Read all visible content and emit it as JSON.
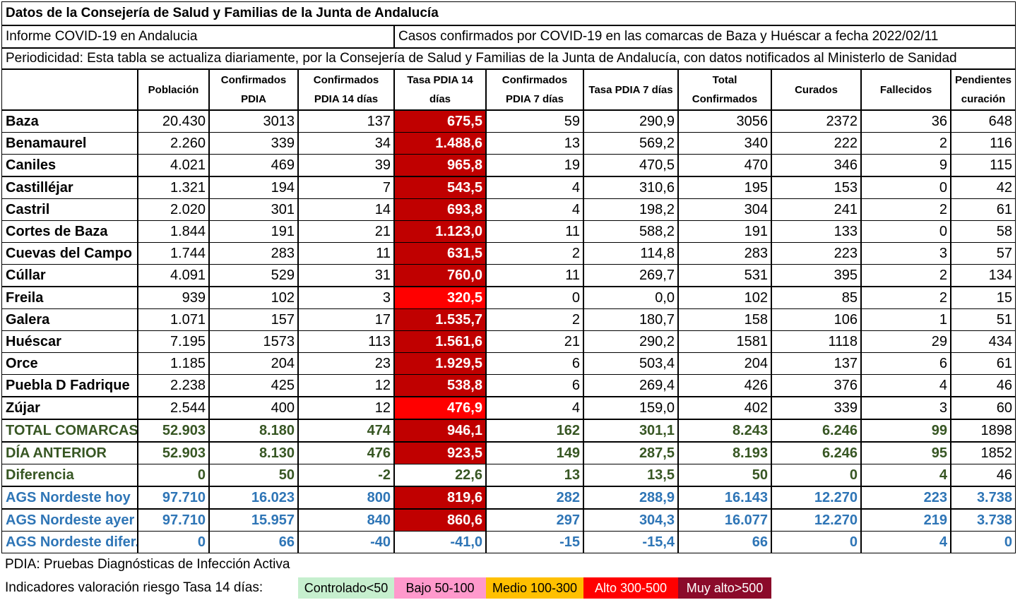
{
  "header": {
    "title": "Datos de la Consejería de Salud y Familias de la Junta de Andalucía",
    "report": "Informe COVID-19 en Andalucia",
    "subject": "Casos confirmados por COVID-19 en las comarcas de Baza y Huéscar a fecha 2022/02/11",
    "periodicity": "Periodicidad: Esta tabla se actualiza diariamente, por la Consejería de Salud y Familias de la Junta de Andalucía, con datos notificados al Ministerlo de Sanidad"
  },
  "columns": {
    "poblacion": "Población",
    "confirmados_pdia": "Confirmados PDIA",
    "confirmados_14": "Confirmados PDIA 14 días",
    "tasa_14": "Tasa PDIA 14 días",
    "confirmados_7": "Confirmados PDIA 7 días",
    "tasa_7": "Tasa PDIA 7 días",
    "total": "Total Confirmados",
    "curados": "Curados",
    "fallecidos": "Fallecidos",
    "pendientes": "Pendientes curación"
  },
  "rows": [
    {
      "name": "Baza",
      "poblacion": "20.430",
      "pdia": "3013",
      "c14": "137",
      "tasa14": "675,5",
      "level": "muyalto",
      "c7": "59",
      "tasa7": "290,9",
      "total": "3056",
      "curados": "2372",
      "fallecidos": "36",
      "pendientes": "648"
    },
    {
      "name": "Benamaurel",
      "poblacion": "2.260",
      "pdia": "339",
      "c14": "34",
      "tasa14": "1.488,6",
      "level": "muyalto",
      "c7": "13",
      "tasa7": "569,2",
      "total": "340",
      "curados": "222",
      "fallecidos": "2",
      "pendientes": "116"
    },
    {
      "name": "Caniles",
      "poblacion": "4.021",
      "pdia": "469",
      "c14": "39",
      "tasa14": "965,8",
      "level": "muyalto",
      "c7": "19",
      "tasa7": "470,5",
      "total": "470",
      "curados": "346",
      "fallecidos": "9",
      "pendientes": "115"
    },
    {
      "name": "Castilléjar",
      "poblacion": "1.321",
      "pdia": "194",
      "c14": "7",
      "tasa14": "543,5",
      "level": "muyalto",
      "c7": "4",
      "tasa7": "310,6",
      "total": "195",
      "curados": "153",
      "fallecidos": "0",
      "pendientes": "42"
    },
    {
      "name": "Castril",
      "poblacion": "2.020",
      "pdia": "301",
      "c14": "14",
      "tasa14": "693,8",
      "level": "muyalto",
      "c7": "4",
      "tasa7": "198,2",
      "total": "304",
      "curados": "241",
      "fallecidos": "2",
      "pendientes": "61"
    },
    {
      "name": "Cortes de Baza",
      "poblacion": "1.844",
      "pdia": "191",
      "c14": "21",
      "tasa14": "1.123,0",
      "level": "muyalto",
      "c7": "11",
      "tasa7": "588,2",
      "total": "191",
      "curados": "133",
      "fallecidos": "0",
      "pendientes": "58"
    },
    {
      "name": "Cuevas del Campo",
      "poblacion": "1.744",
      "pdia": "283",
      "c14": "11",
      "tasa14": "631,5",
      "level": "muyalto",
      "c7": "2",
      "tasa7": "114,8",
      "total": "283",
      "curados": "223",
      "fallecidos": "3",
      "pendientes": "57"
    },
    {
      "name": "Cúllar",
      "poblacion": "4.091",
      "pdia": "529",
      "c14": "31",
      "tasa14": "760,0",
      "level": "muyalto",
      "c7": "11",
      "tasa7": "269,7",
      "total": "531",
      "curados": "395",
      "fallecidos": "2",
      "pendientes": "134"
    },
    {
      "name": "Freila",
      "poblacion": "939",
      "pdia": "102",
      "c14": "3",
      "tasa14": "320,5",
      "level": "alto",
      "c7": "0",
      "tasa7": "0,0",
      "total": "102",
      "curados": "85",
      "fallecidos": "2",
      "pendientes": "15"
    },
    {
      "name": "Galera",
      "poblacion": "1.071",
      "pdia": "157",
      "c14": "17",
      "tasa14": "1.535,7",
      "level": "muyalto",
      "c7": "2",
      "tasa7": "180,7",
      "total": "158",
      "curados": "106",
      "fallecidos": "1",
      "pendientes": "51"
    },
    {
      "name": "Huéscar",
      "poblacion": "7.195",
      "pdia": "1573",
      "c14": "113",
      "tasa14": "1.561,6",
      "level": "muyalto",
      "c7": "21",
      "tasa7": "290,2",
      "total": "1581",
      "curados": "1118",
      "fallecidos": "29",
      "pendientes": "434"
    },
    {
      "name": "Orce",
      "poblacion": "1.185",
      "pdia": "204",
      "c14": "23",
      "tasa14": "1.929,5",
      "level": "muyalto",
      "c7": "6",
      "tasa7": "503,4",
      "total": "204",
      "curados": "137",
      "fallecidos": "6",
      "pendientes": "61"
    },
    {
      "name": "Puebla D Fadrique",
      "poblacion": "2.238",
      "pdia": "425",
      "c14": "12",
      "tasa14": "538,8",
      "level": "muyalto",
      "c7": "6",
      "tasa7": "269,4",
      "total": "426",
      "curados": "376",
      "fallecidos": "4",
      "pendientes": "46"
    },
    {
      "name": "Zújar",
      "poblacion": "2.544",
      "pdia": "400",
      "c14": "12",
      "tasa14": "476,9",
      "level": "alto",
      "c7": "4",
      "tasa7": "159,0",
      "total": "402",
      "curados": "339",
      "fallecidos": "3",
      "pendientes": "60"
    }
  ],
  "summary": [
    {
      "name": "TOTAL COMARCAS",
      "style": "green",
      "poblacion": "52.903",
      "pdia": "8.180",
      "c14": "474",
      "tasa14": "946,1",
      "level": "muyalto",
      "c7": "162",
      "tasa7": "301,1",
      "total": "8.243",
      "curados": "6.246",
      "fallecidos": "99",
      "pendientes": "1898",
      "pend_style": "plain"
    },
    {
      "name": "DÍA ANTERIOR",
      "style": "green",
      "poblacion": "52.903",
      "pdia": "8.130",
      "c14": "476",
      "tasa14": "923,5",
      "level": "muyalto",
      "c7": "149",
      "tasa7": "287,5",
      "total": "8.193",
      "curados": "6.246",
      "fallecidos": "95",
      "pendientes": "1852",
      "pend_style": "plain"
    },
    {
      "name": "Diferencia",
      "style": "green",
      "poblacion": "0",
      "pdia": "50",
      "c14": "-2",
      "tasa14": "22,6",
      "level": "none",
      "c7": "13",
      "tasa7": "13,5",
      "total": "50",
      "curados": "0",
      "fallecidos": "4",
      "pendientes": "46",
      "pend_style": "plain"
    }
  ],
  "ags": [
    {
      "name": "AGS Nordeste hoy",
      "style": "blue",
      "poblacion": "97.710",
      "pdia": "16.023",
      "c14": "800",
      "tasa14": "819,6",
      "level": "muyalto",
      "c7": "282",
      "tasa7": "288,9",
      "total": "16.143",
      "curados": "12.270",
      "fallecidos": "223",
      "pendientes": "3.738"
    },
    {
      "name": "AGS Nordeste ayer",
      "style": "blue",
      "poblacion": "97.710",
      "pdia": "15.957",
      "c14": "840",
      "tasa14": "860,6",
      "level": "muyalto",
      "c7": "297",
      "tasa7": "304,3",
      "total": "16.077",
      "curados": "12.270",
      "fallecidos": "219",
      "pendientes": "3.738"
    },
    {
      "name": "AGS Nordeste difer.",
      "style": "blue",
      "poblacion": "0",
      "pdia": "66",
      "c14": "-40",
      "tasa14": "-41,0",
      "level": "none",
      "c7": "-15",
      "tasa7": "-15,4",
      "total": "66",
      "curados": "0",
      "fallecidos": "4",
      "pendientes": "0"
    }
  ],
  "footer": {
    "pdia_note": "PDIA: Pruebas Diagnósticas de Infección Activa",
    "indicators_label": "Indicadores valoración riesgo Tasa 14 días:",
    "legend": [
      {
        "label": "Controlado<50",
        "bg": "#c6efce",
        "fg": "#000000"
      },
      {
        "label": "Bajo 50-100",
        "bg": "#ff99cc",
        "fg": "#000000"
      },
      {
        "label": "Medio 100-300",
        "bg": "#ffc000",
        "fg": "#000000"
      },
      {
        "label": "Alto 300-500",
        "bg": "#ff0000",
        "fg": "#ffffff"
      },
      {
        "label": "Muy alto>500",
        "bg": "#8b0a2a",
        "fg": "#ffffff"
      }
    ]
  },
  "colors": {
    "muyalto": "#c00000",
    "alto": "#ff0000",
    "green_text": "#375623",
    "blue_text": "#2e75b6"
  }
}
